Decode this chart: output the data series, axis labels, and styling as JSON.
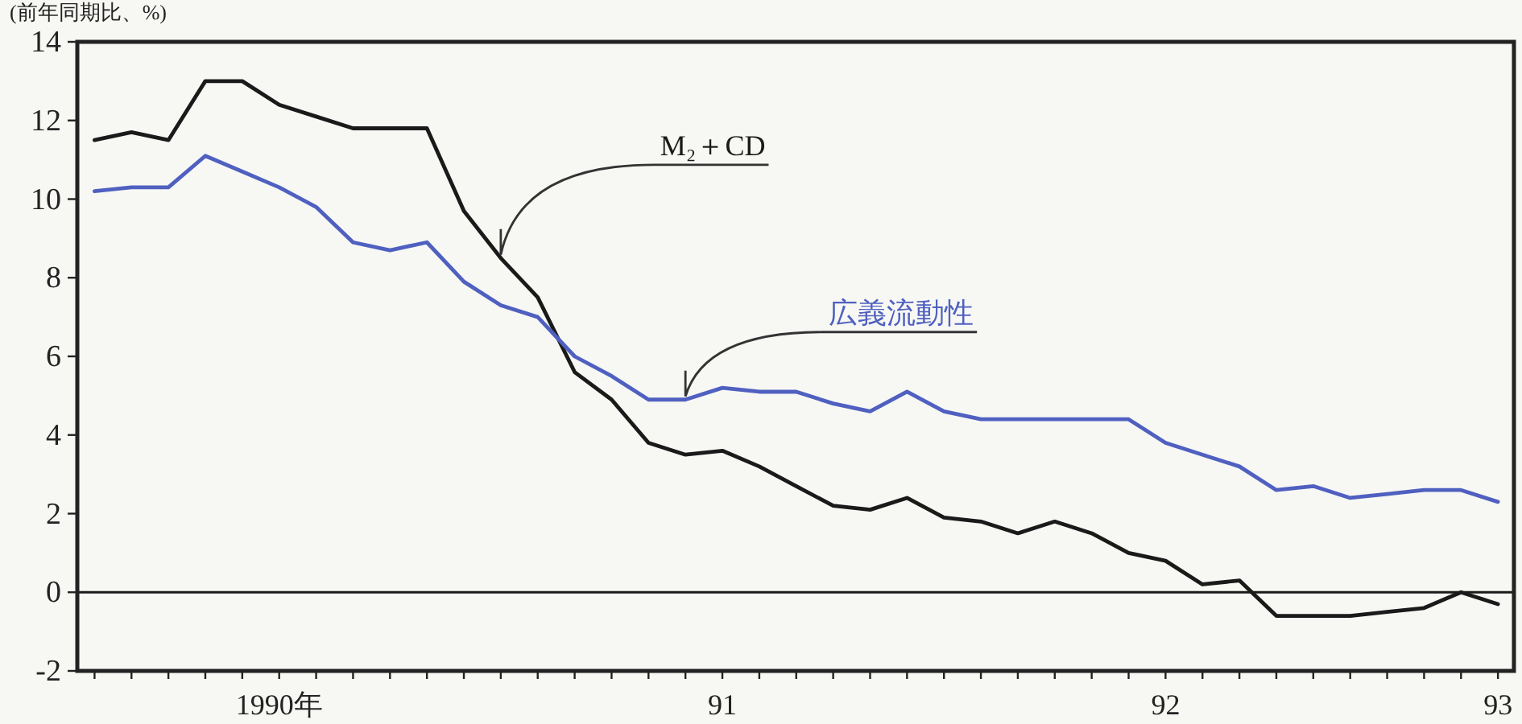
{
  "chart_data": {
    "type": "line",
    "ylabel": "(前年同期比、%)",
    "x": [
      "1990-01",
      "1990-02",
      "1990-03",
      "1990-04",
      "1990-05",
      "1990-06",
      "1990-07",
      "1990-08",
      "1990-09",
      "1990-10",
      "1990-11",
      "1990-12",
      "1991-01",
      "1991-02",
      "1991-03",
      "1991-04",
      "1991-05",
      "1991-06",
      "1991-07",
      "1991-08",
      "1991-09",
      "1991-10",
      "1991-11",
      "1991-12",
      "1992-01",
      "1992-02",
      "1992-03",
      "1992-04",
      "1992-05",
      "1992-06",
      "1992-07",
      "1992-08",
      "1992-09",
      "1992-10",
      "1992-11",
      "1992-12",
      "1993-01",
      "1993-02",
      "1993-03"
    ],
    "series": [
      {
        "name": "M₂＋CD",
        "color": "#1a1a1a",
        "values": [
          11.5,
          11.7,
          11.5,
          13.0,
          13.0,
          12.4,
          12.1,
          11.8,
          11.8,
          11.8,
          9.7,
          8.5,
          7.5,
          5.6,
          4.9,
          3.8,
          3.5,
          3.6,
          3.2,
          2.7,
          2.2,
          2.1,
          2.4,
          1.9,
          1.8,
          1.5,
          1.8,
          1.5,
          1.0,
          0.8,
          0.2,
          0.3,
          -0.6,
          -0.6,
          -0.6,
          -0.5,
          -0.4,
          0.0,
          -0.3
        ]
      },
      {
        "name": "広義流動性",
        "color": "#5060c0",
        "values": [
          10.2,
          10.3,
          10.3,
          11.1,
          10.7,
          10.3,
          9.8,
          8.9,
          8.7,
          8.9,
          7.9,
          7.3,
          7.0,
          6.0,
          5.5,
          4.9,
          4.9,
          5.2,
          5.1,
          5.1,
          4.8,
          4.6,
          5.1,
          4.6,
          4.4,
          4.4,
          4.4,
          4.4,
          4.4,
          3.8,
          3.5,
          3.2,
          2.6,
          2.7,
          2.4,
          2.5,
          2.6,
          2.6,
          2.3
        ]
      }
    ],
    "ylim": [
      -2,
      14
    ],
    "yticks": [
      -2,
      0,
      2,
      4,
      6,
      8,
      10,
      12,
      14
    ],
    "xlim": [
      "1989-12-17",
      "1993-03-14"
    ],
    "xticks": [
      {
        "value": "1990-01",
        "label": null
      },
      {
        "value": "1990-02",
        "label": null
      },
      {
        "value": "1990-03",
        "label": null
      },
      {
        "value": "1990-04",
        "label": null
      },
      {
        "value": "1990-05",
        "label": null
      },
      {
        "value": "1990-06",
        "label": "1990年"
      },
      {
        "value": "1990-07",
        "label": null
      },
      {
        "value": "1990-08",
        "label": null
      },
      {
        "value": "1990-09",
        "label": null
      },
      {
        "value": "1990-10",
        "label": null
      },
      {
        "value": "1990-11",
        "label": null
      },
      {
        "value": "1990-12",
        "label": null
      },
      {
        "value": "1991-01",
        "label": null
      },
      {
        "value": "1991-02",
        "label": null
      },
      {
        "value": "1991-03",
        "label": null
      },
      {
        "value": "1991-04",
        "label": null
      },
      {
        "value": "1991-05",
        "label": null
      },
      {
        "value": "1991-06",
        "label": "91"
      },
      {
        "value": "1991-07",
        "label": null
      },
      {
        "value": "1991-08",
        "label": null
      },
      {
        "value": "1991-09",
        "label": null
      },
      {
        "value": "1991-10",
        "label": null
      },
      {
        "value": "1991-11",
        "label": null
      },
      {
        "value": "1991-12",
        "label": null
      },
      {
        "value": "1992-01",
        "label": null
      },
      {
        "value": "1992-02",
        "label": null
      },
      {
        "value": "1992-03",
        "label": null
      },
      {
        "value": "1992-04",
        "label": null
      },
      {
        "value": "1992-05",
        "label": null
      },
      {
        "value": "1992-06",
        "label": "92"
      },
      {
        "value": "1992-07",
        "label": null
      },
      {
        "value": "1992-08",
        "label": null
      },
      {
        "value": "1992-09",
        "label": null
      },
      {
        "value": "1992-10",
        "label": null
      },
      {
        "value": "1992-11",
        "label": null
      },
      {
        "value": "1992-12",
        "label": null
      },
      {
        "value": "1993-01",
        "label": null
      },
      {
        "value": "1993-02",
        "label": null
      },
      {
        "value": "1993-03",
        "label": "93"
      }
    ],
    "ref_lines": [
      {
        "axis": "y",
        "value": 0,
        "color": "#1a1a1a"
      }
    ],
    "grid": false,
    "legend": false,
    "marker": "none",
    "line_style": "solid"
  }
}
